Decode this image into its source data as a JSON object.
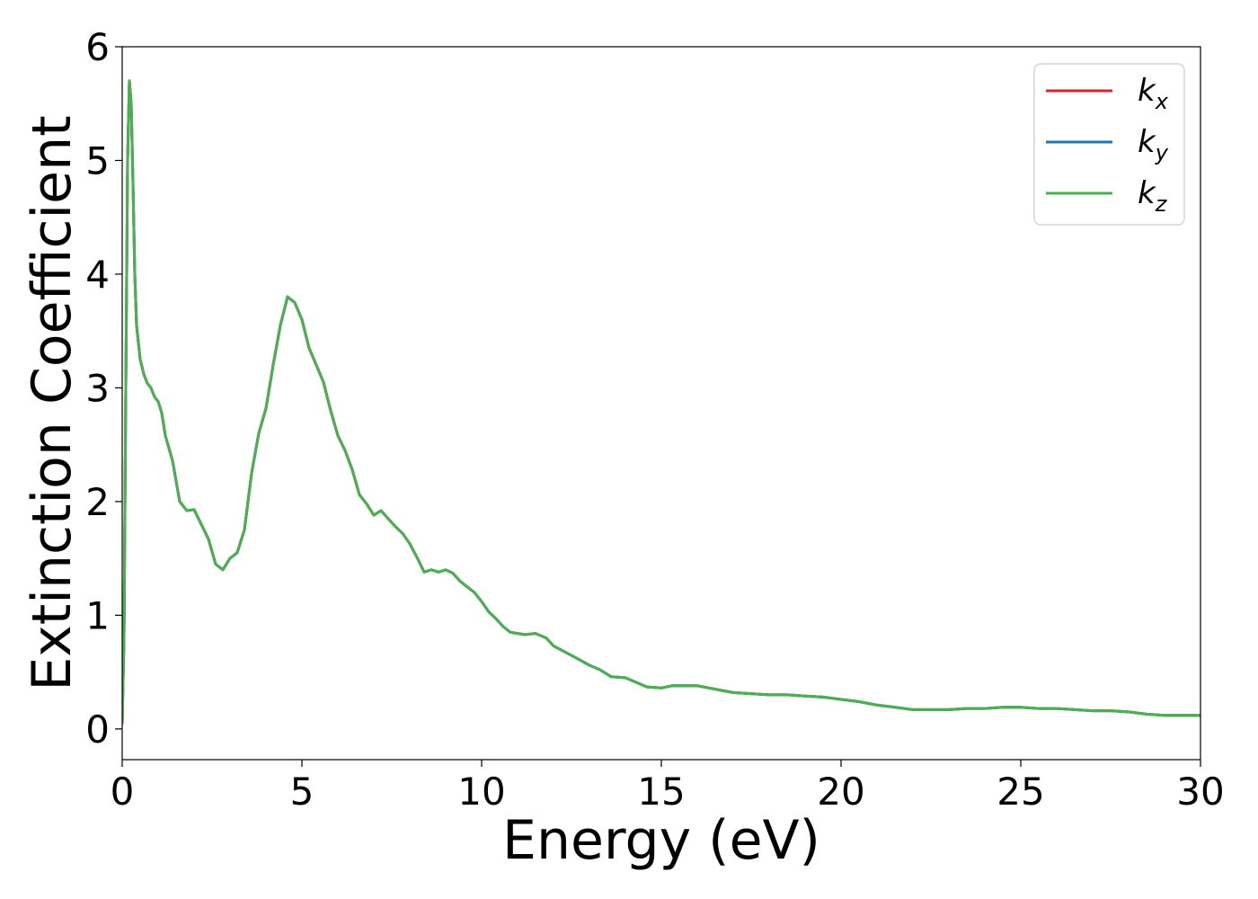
{
  "chart_data": {
    "type": "line",
    "xlabel": "Energy (eV)",
    "ylabel": "Extinction Coefficient",
    "xlim": [
      0,
      30
    ],
    "ylim": [
      -0.27,
      6
    ],
    "xticks": [
      0,
      5,
      10,
      15,
      20,
      25,
      30
    ],
    "yticks": [
      0,
      1,
      2,
      3,
      4,
      5,
      6
    ],
    "grid": false,
    "legend_position": "top-right",
    "colors": {
      "k_x": "#d62728",
      "k_y": "#1f77b4",
      "k_z": "#4caf50"
    },
    "legend": [
      {
        "base": "k",
        "sub": "x",
        "color": "#d62728"
      },
      {
        "base": "k",
        "sub": "y",
        "color": "#1f77b4"
      },
      {
        "base": "k",
        "sub": "z",
        "color": "#4caf50"
      }
    ],
    "x": [
      0,
      0.05,
      0.1,
      0.15,
      0.2,
      0.25,
      0.3,
      0.35,
      0.4,
      0.5,
      0.6,
      0.7,
      0.8,
      0.9,
      1.0,
      1.1,
      1.2,
      1.3,
      1.4,
      1.6,
      1.8,
      2.0,
      2.2,
      2.4,
      2.6,
      2.8,
      3.0,
      3.2,
      3.4,
      3.6,
      3.8,
      4.0,
      4.2,
      4.4,
      4.6,
      4.8,
      5.0,
      5.2,
      5.4,
      5.6,
      5.8,
      6.0,
      6.2,
      6.4,
      6.6,
      6.8,
      7.0,
      7.2,
      7.4,
      7.6,
      7.8,
      8.0,
      8.2,
      8.4,
      8.6,
      8.8,
      9.0,
      9.2,
      9.4,
      9.6,
      9.8,
      10.0,
      10.2,
      10.4,
      10.6,
      10.8,
      11.0,
      11.2,
      11.5,
      11.8,
      12.0,
      12.3,
      12.6,
      13.0,
      13.3,
      13.6,
      14.0,
      14.3,
      14.6,
      15.0,
      15.3,
      15.6,
      16.0,
      16.5,
      17.0,
      17.5,
      18.0,
      18.5,
      19.0,
      19.5,
      20.0,
      20.5,
      21.0,
      21.5,
      22.0,
      22.5,
      23.0,
      23.5,
      24.0,
      24.5,
      25.0,
      25.5,
      26.0,
      26.5,
      27.0,
      27.5,
      28.0,
      28.5,
      29.0,
      29.5,
      30.0
    ],
    "series": [
      {
        "values": [
          0.05,
          0.8,
          3.0,
          5.0,
          5.7,
          5.5,
          4.8,
          4.0,
          3.55,
          3.25,
          3.12,
          3.04,
          3.0,
          2.92,
          2.88,
          2.78,
          2.58,
          2.47,
          2.36,
          2.0,
          1.92,
          1.93,
          1.8,
          1.67,
          1.45,
          1.4,
          1.5,
          1.55,
          1.75,
          2.25,
          2.6,
          2.82,
          3.2,
          3.55,
          3.8,
          3.75,
          3.6,
          3.35,
          3.2,
          3.05,
          2.8,
          2.58,
          2.45,
          2.28,
          2.06,
          1.98,
          1.88,
          1.92,
          1.85,
          1.78,
          1.72,
          1.63,
          1.51,
          1.38,
          1.4,
          1.38,
          1.4,
          1.37,
          1.3,
          1.25,
          1.2,
          1.12,
          1.03,
          0.97,
          0.9,
          0.85,
          0.84,
          0.83,
          0.84,
          0.8,
          0.73,
          0.68,
          0.63,
          0.56,
          0.52,
          0.46,
          0.45,
          0.41,
          0.37,
          0.36,
          0.38,
          0.38,
          0.38,
          0.35,
          0.32,
          0.31,
          0.3,
          0.3,
          0.29,
          0.28,
          0.26,
          0.24,
          0.21,
          0.19,
          0.17,
          0.17,
          0.17,
          0.18,
          0.18,
          0.19,
          0.19,
          0.18,
          0.18,
          0.17,
          0.16,
          0.16,
          0.15,
          0.13,
          0.12,
          0.12,
          0.12
        ]
      },
      {
        "values": [
          0.05,
          0.8,
          3.0,
          5.0,
          5.7,
          5.5,
          4.8,
          4.0,
          3.55,
          3.25,
          3.12,
          3.04,
          3.0,
          2.92,
          2.88,
          2.78,
          2.58,
          2.47,
          2.36,
          2.0,
          1.92,
          1.93,
          1.8,
          1.67,
          1.45,
          1.4,
          1.5,
          1.55,
          1.75,
          2.25,
          2.6,
          2.82,
          3.2,
          3.55,
          3.8,
          3.75,
          3.6,
          3.35,
          3.2,
          3.05,
          2.8,
          2.58,
          2.45,
          2.28,
          2.06,
          1.98,
          1.88,
          1.92,
          1.85,
          1.78,
          1.72,
          1.63,
          1.51,
          1.38,
          1.4,
          1.38,
          1.4,
          1.37,
          1.3,
          1.25,
          1.2,
          1.12,
          1.03,
          0.97,
          0.9,
          0.85,
          0.84,
          0.83,
          0.84,
          0.8,
          0.73,
          0.68,
          0.63,
          0.56,
          0.52,
          0.46,
          0.45,
          0.41,
          0.37,
          0.36,
          0.38,
          0.38,
          0.38,
          0.35,
          0.32,
          0.31,
          0.3,
          0.3,
          0.29,
          0.28,
          0.26,
          0.24,
          0.21,
          0.19,
          0.17,
          0.17,
          0.17,
          0.18,
          0.18,
          0.19,
          0.19,
          0.18,
          0.18,
          0.17,
          0.16,
          0.16,
          0.15,
          0.13,
          0.12,
          0.12,
          0.12
        ]
      },
      {
        "values": [
          0.05,
          0.8,
          3.0,
          5.0,
          5.7,
          5.5,
          4.8,
          4.0,
          3.55,
          3.25,
          3.12,
          3.04,
          3.0,
          2.92,
          2.88,
          2.78,
          2.58,
          2.47,
          2.36,
          2.0,
          1.92,
          1.93,
          1.8,
          1.67,
          1.45,
          1.4,
          1.5,
          1.55,
          1.75,
          2.25,
          2.6,
          2.82,
          3.2,
          3.55,
          3.8,
          3.75,
          3.6,
          3.35,
          3.2,
          3.05,
          2.8,
          2.58,
          2.45,
          2.28,
          2.06,
          1.98,
          1.88,
          1.92,
          1.85,
          1.78,
          1.72,
          1.63,
          1.51,
          1.38,
          1.4,
          1.38,
          1.4,
          1.37,
          1.3,
          1.25,
          1.2,
          1.12,
          1.03,
          0.97,
          0.9,
          0.85,
          0.84,
          0.83,
          0.84,
          0.8,
          0.73,
          0.68,
          0.63,
          0.56,
          0.52,
          0.46,
          0.45,
          0.41,
          0.37,
          0.36,
          0.38,
          0.38,
          0.38,
          0.35,
          0.32,
          0.31,
          0.3,
          0.3,
          0.29,
          0.28,
          0.26,
          0.24,
          0.21,
          0.19,
          0.17,
          0.17,
          0.17,
          0.18,
          0.18,
          0.19,
          0.19,
          0.18,
          0.18,
          0.17,
          0.16,
          0.16,
          0.15,
          0.13,
          0.12,
          0.12,
          0.12
        ]
      }
    ]
  }
}
